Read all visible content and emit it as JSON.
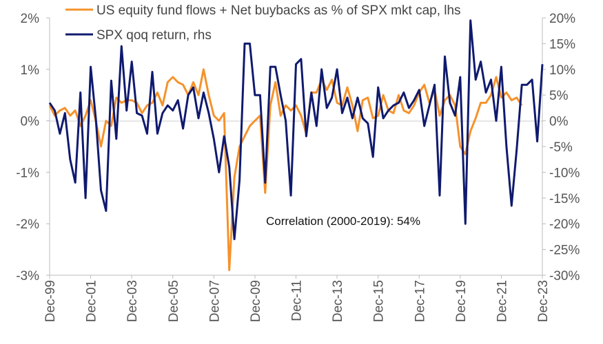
{
  "chart_data": {
    "type": "line",
    "title": "",
    "legend_position": "top-left",
    "annotation": "Correlation (2000-2019): 54%",
    "x_ticks": [
      "Dec-99",
      "Dec-01",
      "Dec-03",
      "Dec-05",
      "Dec-07",
      "Dec-09",
      "Dec-11",
      "Dec-13",
      "Dec-15",
      "Dec-17",
      "Dec-19",
      "Dec-21",
      "Dec-23"
    ],
    "x_range": [
      1999.92,
      2023.92
    ],
    "left_axis": {
      "label": "lhs",
      "ticks": [
        "2%",
        "1%",
        "0%",
        "-1%",
        "-2%",
        "-3%"
      ],
      "tick_values": [
        2,
        1,
        0,
        -1,
        -2,
        -3
      ],
      "ylim": [
        -3,
        2
      ]
    },
    "right_axis": {
      "label": "rhs",
      "ticks": [
        "20%",
        "15%",
        "10%",
        "5%",
        "0%",
        "-5%",
        "-10%",
        "-15%",
        "-20%",
        "-25%",
        "-30%"
      ],
      "tick_values": [
        20,
        15,
        10,
        5,
        0,
        -5,
        -10,
        -15,
        -20,
        -25,
        -30
      ],
      "ylim": [
        -30,
        20
      ]
    },
    "series": [
      {
        "name": "US equity fund flows + Net buybacks  as % of SPX mkt cap, lhs",
        "axis": "left",
        "color": "#F5922B",
        "values": [
          [
            1999.92,
            0.3
          ],
          [
            2000.17,
            0.1
          ],
          [
            2000.42,
            0.2
          ],
          [
            2000.67,
            0.25
          ],
          [
            2000.92,
            0.1
          ],
          [
            2001.17,
            0.2
          ],
          [
            2001.42,
            -0.1
          ],
          [
            2001.67,
            0.1
          ],
          [
            2001.92,
            0.4
          ],
          [
            2002.17,
            0.0
          ],
          [
            2002.42,
            -0.5
          ],
          [
            2002.67,
            0.0
          ],
          [
            2002.92,
            -0.1
          ],
          [
            2003.17,
            0.45
          ],
          [
            2003.42,
            0.35
          ],
          [
            2003.67,
            0.4
          ],
          [
            2003.92,
            0.4
          ],
          [
            2004.17,
            0.35
          ],
          [
            2004.42,
            0.15
          ],
          [
            2004.67,
            0.3
          ],
          [
            2004.92,
            0.35
          ],
          [
            2005.17,
            0.55
          ],
          [
            2005.42,
            0.3
          ],
          [
            2005.67,
            0.75
          ],
          [
            2005.92,
            0.85
          ],
          [
            2006.17,
            0.75
          ],
          [
            2006.42,
            0.7
          ],
          [
            2006.67,
            0.5
          ],
          [
            2006.92,
            0.75
          ],
          [
            2007.17,
            0.5
          ],
          [
            2007.42,
            1.0
          ],
          [
            2007.67,
            0.5
          ],
          [
            2007.92,
            0.1
          ],
          [
            2008.17,
            0.0
          ],
          [
            2008.42,
            0.15
          ],
          [
            2008.67,
            -2.9
          ],
          [
            2008.92,
            -1.1
          ],
          [
            2009.17,
            -0.5
          ],
          [
            2009.42,
            -0.3
          ],
          [
            2009.67,
            -0.1
          ],
          [
            2009.92,
            0.0
          ],
          [
            2010.17,
            0.1
          ],
          [
            2010.42,
            -1.4
          ],
          [
            2010.67,
            0.3
          ],
          [
            2010.92,
            0.75
          ],
          [
            2011.17,
            0.1
          ],
          [
            2011.42,
            0.3
          ],
          [
            2011.67,
            0.2
          ],
          [
            2011.92,
            0.3
          ],
          [
            2012.17,
            0.1
          ],
          [
            2012.42,
            -0.25
          ],
          [
            2012.67,
            0.55
          ],
          [
            2012.92,
            0.55
          ],
          [
            2013.17,
            0.8
          ],
          [
            2013.42,
            0.6
          ],
          [
            2013.67,
            0.8
          ],
          [
            2013.92,
            0.35
          ],
          [
            2014.17,
            0.3
          ],
          [
            2014.42,
            0.65
          ],
          [
            2014.67,
            0.3
          ],
          [
            2014.92,
            -0.2
          ],
          [
            2015.17,
            0.4
          ],
          [
            2015.42,
            0.45
          ],
          [
            2015.67,
            0.05
          ],
          [
            2015.92,
            0.1
          ],
          [
            2016.17,
            0.5
          ],
          [
            2016.42,
            0.2
          ],
          [
            2016.67,
            0.15
          ],
          [
            2016.92,
            0.5
          ],
          [
            2017.17,
            0.2
          ],
          [
            2017.42,
            0.15
          ],
          [
            2017.67,
            0.3
          ],
          [
            2017.92,
            0.55
          ],
          [
            2018.17,
            0.7
          ],
          [
            2018.42,
            0.35
          ],
          [
            2018.67,
            0.6
          ],
          [
            2018.92,
            0.1
          ],
          [
            2019.17,
            0.4
          ],
          [
            2019.42,
            0.5
          ],
          [
            2019.67,
            0.3
          ],
          [
            2019.92,
            -0.5
          ],
          [
            2020.17,
            -0.65
          ],
          [
            2020.42,
            -0.2
          ],
          [
            2020.67,
            0.05
          ],
          [
            2020.92,
            0.35
          ],
          [
            2021.17,
            0.35
          ],
          [
            2021.42,
            0.5
          ],
          [
            2021.67,
            0.85
          ],
          [
            2021.92,
            0.45
          ],
          [
            2022.17,
            0.55
          ],
          [
            2022.42,
            0.4
          ],
          [
            2022.67,
            0.45
          ],
          [
            2022.92,
            0.3
          ]
        ]
      },
      {
        "name": "SPX qoq return, rhs",
        "axis": "right",
        "color": "#0F1A6E",
        "values": [
          [
            1999.92,
            3.5
          ],
          [
            2000.17,
            2.0
          ],
          [
            2000.42,
            -2.5
          ],
          [
            2000.67,
            1.5
          ],
          [
            2000.92,
            -7.5
          ],
          [
            2001.17,
            -12.0
          ],
          [
            2001.42,
            5.5
          ],
          [
            2001.67,
            -15.0
          ],
          [
            2001.92,
            10.5
          ],
          [
            2002.17,
            0.5
          ],
          [
            2002.42,
            -13.5
          ],
          [
            2002.67,
            -17.5
          ],
          [
            2002.92,
            7.8
          ],
          [
            2003.17,
            -3.5
          ],
          [
            2003.42,
            14.5
          ],
          [
            2003.67,
            2.0
          ],
          [
            2003.92,
            11.5
          ],
          [
            2004.17,
            1.5
          ],
          [
            2004.42,
            1.0
          ],
          [
            2004.67,
            -2.5
          ],
          [
            2004.92,
            9.5
          ],
          [
            2005.17,
            -2.5
          ],
          [
            2005.42,
            1.5
          ],
          [
            2005.67,
            3.0
          ],
          [
            2005.92,
            2.0
          ],
          [
            2006.17,
            4.0
          ],
          [
            2006.42,
            -1.5
          ],
          [
            2006.67,
            5.0
          ],
          [
            2006.92,
            6.5
          ],
          [
            2007.17,
            0.5
          ],
          [
            2007.42,
            5.5
          ],
          [
            2007.67,
            1.5
          ],
          [
            2007.92,
            -3.5
          ],
          [
            2008.17,
            -10.0
          ],
          [
            2008.42,
            -3.0
          ],
          [
            2008.67,
            -9.0
          ],
          [
            2008.92,
            -23.0
          ],
          [
            2009.17,
            -11.5
          ],
          [
            2009.42,
            15.0
          ],
          [
            2009.67,
            15.0
          ],
          [
            2009.92,
            5.0
          ],
          [
            2010.17,
            5.0
          ],
          [
            2010.42,
            -12.0
          ],
          [
            2010.67,
            10.5
          ],
          [
            2010.92,
            10.5
          ],
          [
            2011.17,
            5.0
          ],
          [
            2011.42,
            0.0
          ],
          [
            2011.67,
            -14.5
          ],
          [
            2011.92,
            11.0
          ],
          [
            2012.17,
            12.0
          ],
          [
            2012.42,
            -3.0
          ],
          [
            2012.67,
            5.5
          ],
          [
            2012.92,
            -1.0
          ],
          [
            2013.17,
            10.0
          ],
          [
            2013.42,
            2.5
          ],
          [
            2013.67,
            4.5
          ],
          [
            2013.92,
            10.0
          ],
          [
            2014.17,
            1.5
          ],
          [
            2014.42,
            4.5
          ],
          [
            2014.67,
            0.5
          ],
          [
            2014.92,
            4.5
          ],
          [
            2015.17,
            0.5
          ],
          [
            2015.42,
            -0.5
          ],
          [
            2015.67,
            -7.0
          ],
          [
            2015.92,
            6.5
          ],
          [
            2016.17,
            0.5
          ],
          [
            2016.42,
            2.0
          ],
          [
            2016.67,
            3.0
          ],
          [
            2016.92,
            3.5
          ],
          [
            2017.17,
            5.5
          ],
          [
            2017.42,
            2.5
          ],
          [
            2017.67,
            4.0
          ],
          [
            2017.92,
            6.0
          ],
          [
            2018.17,
            -1.0
          ],
          [
            2018.42,
            3.0
          ],
          [
            2018.67,
            7.0
          ],
          [
            2018.92,
            -14.5
          ],
          [
            2019.17,
            12.5
          ],
          [
            2019.42,
            3.5
          ],
          [
            2019.67,
            1.0
          ],
          [
            2019.92,
            8.5
          ],
          [
            2020.17,
            -20.0
          ],
          [
            2020.42,
            19.5
          ],
          [
            2020.67,
            8.0
          ],
          [
            2020.92,
            11.5
          ],
          [
            2021.17,
            5.5
          ],
          [
            2021.42,
            8.0
          ],
          [
            2021.67,
            0.0
          ],
          [
            2021.92,
            10.5
          ],
          [
            2022.17,
            -5.0
          ],
          [
            2022.42,
            -16.5
          ],
          [
            2022.67,
            -5.5
          ],
          [
            2022.92,
            7.0
          ],
          [
            2023.17,
            7.0
          ],
          [
            2023.42,
            8.0
          ],
          [
            2023.67,
            -4.0
          ],
          [
            2023.92,
            11.0
          ]
        ]
      }
    ]
  }
}
